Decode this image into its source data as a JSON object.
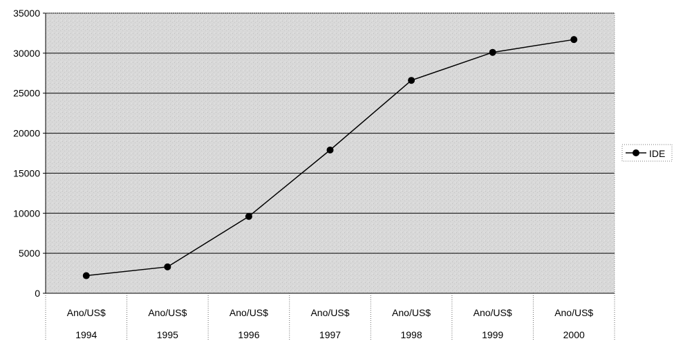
{
  "chart_data": {
    "type": "line",
    "categories": [
      [
        "Ano/US$",
        "1994"
      ],
      [
        "Ano/US$",
        "1995"
      ],
      [
        "Ano/US$",
        "1996"
      ],
      [
        "Ano/US$",
        "1997"
      ],
      [
        "Ano/US$",
        "1998"
      ],
      [
        "Ano/US$",
        "1999"
      ],
      [
        "Ano/US$",
        "2000"
      ]
    ],
    "series": [
      {
        "name": "IDE",
        "values": [
          2200,
          3300,
          9600,
          17900,
          26600,
          30100,
          31700
        ]
      }
    ],
    "ylim": [
      0,
      35000
    ],
    "yticks": [
      "0",
      "5000",
      "10000",
      "15000",
      "20000",
      "25000",
      "30000",
      "35000"
    ],
    "grid": true,
    "legend_position": "right",
    "colors": {
      "line": "#000000",
      "marker": "#000000",
      "plot_background": "#d6d6d6"
    }
  }
}
